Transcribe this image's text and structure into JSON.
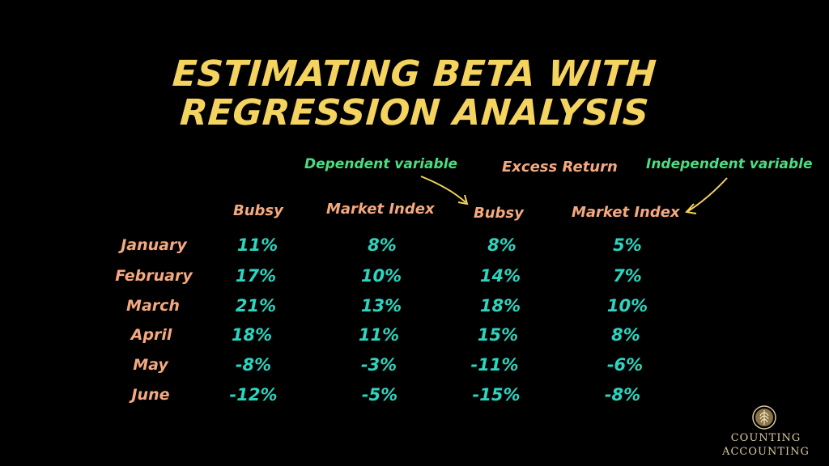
{
  "title": {
    "line1": "ESTIMATING BETA WITH",
    "line2": "REGRESSION ANALYSIS"
  },
  "annotations": {
    "dependent": "Dependent variable",
    "excess": "Excess Return",
    "independent": "Independent variable"
  },
  "columns": {
    "bubsy": "Bubsy",
    "market_index": "Market Index",
    "excess_bubsy": "Bubsy",
    "excess_market_index": "Market Index"
  },
  "rows": [
    {
      "month": "January",
      "bubsy": "11%",
      "market": "8%",
      "ex_bubsy": "8%",
      "ex_market": "5%"
    },
    {
      "month": "February",
      "bubsy": "17%",
      "market": "10%",
      "ex_bubsy": "14%",
      "ex_market": "7%"
    },
    {
      "month": "March",
      "bubsy": "21%",
      "market": "13%",
      "ex_bubsy": "18%",
      "ex_market": "10%"
    },
    {
      "month": "April",
      "bubsy": "18%",
      "market": "11%",
      "ex_bubsy": "15%",
      "ex_market": "8%"
    },
    {
      "month": "May",
      "bubsy": "-8%",
      "market": "-3%",
      "ex_bubsy": "-11%",
      "ex_market": "-6%"
    },
    {
      "month": "June",
      "bubsy": "-12%",
      "market": "-5%",
      "ex_bubsy": "-15%",
      "ex_market": "-8%"
    }
  ],
  "logo": {
    "line1": "COUNTING",
    "line2": "ACCOUNTING",
    "icon": "wheat-laurel-icon"
  },
  "colors": {
    "background": "#000000",
    "title": "#F4D35E",
    "annotation": "#4ADE80",
    "header": "#F5A97F",
    "values": "#2DD4BF",
    "logo": "#D9C8A3"
  }
}
